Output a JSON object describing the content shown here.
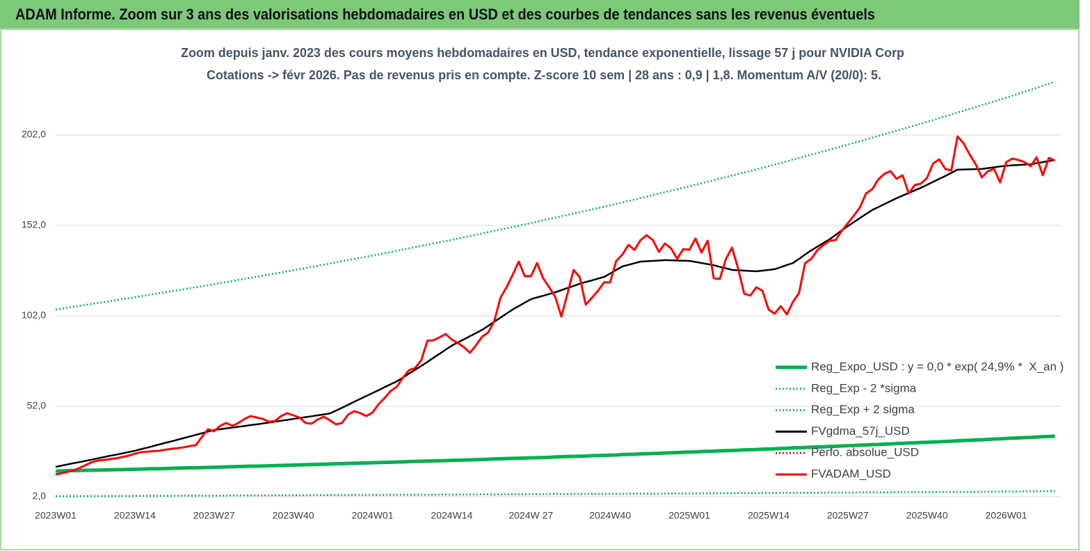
{
  "header": {
    "title": "ADAM Informe. Zoom sur 3 ans des valorisations hebdomadaires en USD et des courbes de tendances sans les revenus éventuels"
  },
  "chart_data": {
    "type": "line",
    "title": "Zoom depuis janv. 2023 des cours moyens hebdomadaires en USD, tendance exponentielle, lissage 57 j pour NVIDIA Corp",
    "subtitle": "Cotations -> févr 2026. Pas de revenus pris en compte. Z-score 10 sem | 28 ans : 0,9 | 1,8. Momentum A/V (20/0): 5.",
    "categories": [
      "2023W01",
      null,
      null,
      null,
      null,
      null,
      null,
      null,
      null,
      null,
      null,
      null,
      null,
      "2023W14",
      null,
      null,
      null,
      null,
      null,
      null,
      null,
      null,
      null,
      null,
      null,
      null,
      "2023W27",
      null,
      null,
      null,
      null,
      null,
      null,
      null,
      null,
      null,
      null,
      null,
      null,
      "2023W40",
      null,
      null,
      null,
      null,
      null,
      null,
      null,
      null,
      null,
      null,
      null,
      null,
      "2024W01",
      null,
      null,
      null,
      null,
      null,
      null,
      null,
      null,
      null,
      null,
      null,
      null,
      "2024W14",
      null,
      null,
      null,
      null,
      null,
      null,
      null,
      null,
      null,
      null,
      null,
      null,
      "2024W 27",
      null,
      null,
      null,
      null,
      null,
      null,
      null,
      null,
      null,
      null,
      null,
      null,
      "2024W40",
      null,
      null,
      null,
      null,
      null,
      null,
      null,
      null,
      null,
      null,
      null,
      null,
      "2025W01",
      null,
      null,
      null,
      null,
      null,
      null,
      null,
      null,
      null,
      null,
      null,
      null,
      "2025W14",
      null,
      null,
      null,
      null,
      null,
      null,
      null,
      null,
      null,
      null,
      null,
      null,
      "2025W27",
      null,
      null,
      null,
      null,
      null,
      null,
      null,
      null,
      null,
      null,
      null,
      null,
      "2025W40",
      null,
      null,
      null,
      null,
      null,
      null,
      null,
      null,
      null,
      null,
      null,
      null,
      "2026W01",
      null,
      null,
      null,
      null,
      null,
      null,
      null,
      null
    ],
    "ylim": [
      2,
      232
    ],
    "yticks": [
      {
        "value": 2,
        "label": "2,0"
      },
      {
        "value": 52,
        "label": "52,0"
      },
      {
        "value": 102,
        "label": "102,0"
      },
      {
        "value": 152,
        "label": "152,0"
      },
      {
        "value": 202,
        "label": "202,0"
      }
    ],
    "grid": true,
    "legend": "lower right",
    "series": [
      {
        "name": "Reg_Expo_USD : y = 0,0 * exp( 24,9% *  X_an )",
        "color": "#00b050",
        "line_style": "thick",
        "values": [
          16.2,
          16.3,
          16.4,
          16.4,
          16.5,
          16.6,
          16.7,
          16.7,
          16.8,
          16.9,
          17.0,
          17.0,
          17.1,
          17.2,
          17.3,
          17.4,
          17.5,
          17.5,
          17.6,
          17.7,
          17.8,
          17.9,
          18.0,
          18.0,
          18.1,
          18.2,
          18.3,
          18.4,
          18.5,
          18.6,
          18.7,
          18.8,
          18.9,
          18.9,
          19.0,
          19.1,
          19.2,
          19.3,
          19.4,
          19.5,
          19.6,
          19.7,
          19.8,
          19.9,
          20.0,
          20.1,
          20.2,
          20.3,
          20.4,
          20.5,
          20.6,
          20.7,
          20.8,
          20.9,
          21.0,
          21.1,
          21.2,
          21.3,
          21.4,
          21.5,
          21.6,
          21.7,
          21.8,
          21.9,
          22.0,
          22.1,
          22.2,
          22.3,
          22.4,
          22.5,
          22.6,
          22.7,
          22.9,
          23.0,
          23.1,
          23.2,
          23.3,
          23.4,
          23.5,
          23.6,
          23.7,
          23.8,
          24.0,
          24.1,
          24.2,
          24.3,
          24.4,
          24.5,
          24.7,
          24.8,
          24.9,
          25.0,
          25.1,
          25.3,
          25.4,
          25.5,
          25.7,
          25.8,
          25.9,
          26.0,
          26.2,
          26.3,
          26.4,
          26.6,
          26.7,
          26.8,
          27.0,
          27.1,
          27.2,
          27.4,
          27.5,
          27.6,
          27.7,
          27.9,
          28.0,
          28.1,
          28.3,
          28.4,
          28.5,
          28.7,
          28.8,
          29.0,
          29.1,
          29.2,
          29.4,
          29.5,
          29.6,
          29.8,
          29.9,
          30.1,
          30.2,
          30.3,
          30.5,
          30.6,
          30.8,
          30.9,
          31.1,
          31.2,
          31.4,
          31.5,
          31.7,
          31.8,
          32.0,
          32.1,
          32.3,
          32.4,
          32.6,
          32.7,
          32.9,
          33.1,
          33.2,
          33.4,
          33.5,
          33.7,
          33.9,
          34.0,
          34.2,
          34.4,
          34.5,
          34.7,
          34.8,
          35.0,
          35.2,
          35.3,
          35.5
        ]
      },
      {
        "name": "Reg_Exp - 2 *sigma",
        "color": "#00b050",
        "line_style": "dotted",
        "values": [
          2.3,
          2.3,
          2.3,
          2.3,
          2.3,
          2.3,
          2.4,
          2.4,
          2.4,
          2.4,
          2.4,
          2.4,
          2.4,
          2.5,
          2.5,
          2.5,
          2.5,
          2.5,
          2.5,
          2.5,
          2.6,
          2.6,
          2.6,
          2.6,
          2.6,
          2.6,
          2.6,
          2.6,
          2.6,
          2.7,
          2.7,
          2.7,
          2.7,
          2.7,
          2.7,
          2.7,
          2.8,
          2.8,
          2.8,
          2.8,
          2.8,
          2.8,
          2.9,
          2.9,
          2.9,
          2.9,
          2.9,
          2.9,
          2.9,
          3.0,
          3.0,
          3.0,
          3.0,
          3.0,
          3.0,
          3.1,
          3.1,
          3.1,
          3.1,
          3.1,
          3.1,
          3.1,
          3.2,
          3.2,
          3.2,
          3.2,
          3.2,
          3.2,
          3.3,
          3.3,
          3.3,
          3.3,
          3.3,
          3.3,
          3.3,
          3.4,
          3.4,
          3.4,
          3.4,
          3.4,
          3.4,
          3.5,
          3.5,
          3.5,
          3.5,
          3.5,
          3.5,
          3.5,
          3.6,
          3.6,
          3.6,
          3.6,
          3.6,
          3.6,
          3.7,
          3.7,
          3.7,
          3.7,
          3.7,
          3.7,
          3.7,
          3.8,
          3.8,
          3.8,
          3.8,
          3.8,
          3.9,
          3.9,
          3.9,
          3.9,
          3.9,
          4.0,
          4.0,
          4.0,
          4.0,
          4.0,
          4.1,
          4.1,
          4.1,
          4.1,
          4.2,
          4.2,
          4.2,
          4.2,
          4.2,
          4.2,
          4.2,
          4.3,
          4.3,
          4.3,
          4.3,
          4.3,
          4.4,
          4.4,
          4.4,
          4.4,
          4.4,
          4.5,
          4.5,
          4.5,
          4.5,
          4.5,
          4.6,
          4.6,
          4.6,
          4.7,
          4.7,
          4.7,
          4.7,
          4.7,
          4.8,
          4.8,
          4.8,
          4.8,
          4.8,
          4.9,
          4.9,
          4.9,
          4.9,
          5.0,
          5.0,
          5.0,
          5.0,
          5.1,
          5.1
        ]
      },
      {
        "name": "Reg_Exp + 2 sigma",
        "color": "#00b050",
        "line_style": "dotted",
        "values": [
          105.5,
          106.0,
          106.5,
          107.1,
          107.6,
          108.1,
          108.6,
          109.2,
          109.7,
          110.2,
          110.7,
          111.3,
          111.8,
          112.3,
          112.9,
          113.4,
          114.0,
          114.5,
          115.1,
          115.6,
          116.2,
          116.7,
          117.3,
          117.8,
          118.4,
          118.9,
          119.5,
          120.1,
          120.7,
          121.3,
          121.9,
          122.5,
          123.1,
          123.6,
          124.2,
          124.8,
          125.4,
          126.0,
          126.6,
          127.2,
          127.8,
          128.4,
          129.1,
          129.7,
          130.3,
          130.9,
          131.6,
          132.2,
          132.8,
          133.4,
          134.1,
          134.7,
          135.3,
          136.0,
          136.6,
          137.3,
          138.0,
          138.6,
          139.3,
          140.0,
          140.7,
          141.3,
          142.0,
          142.7,
          143.3,
          144.0,
          144.7,
          145.4,
          146.1,
          146.9,
          147.6,
          148.3,
          149.0,
          149.7,
          150.4,
          151.2,
          151.9,
          152.6,
          153.3,
          154.1,
          154.8,
          155.6,
          156.3,
          157.1,
          157.8,
          158.6,
          159.3,
          160.1,
          160.8,
          161.6,
          162.3,
          163.1,
          163.9,
          164.7,
          165.5,
          166.3,
          167.1,
          167.9,
          168.8,
          169.6,
          170.4,
          171.2,
          172.0,
          172.8,
          173.6,
          174.5,
          175.3,
          176.2,
          177.0,
          177.9,
          178.7,
          179.6,
          180.4,
          181.3,
          182.1,
          183.0,
          183.8,
          184.7,
          185.6,
          186.5,
          187.4,
          188.4,
          189.3,
          190.2,
          191.1,
          192.0,
          192.9,
          193.9,
          194.8,
          195.7,
          196.6,
          197.6,
          198.5,
          199.5,
          200.5,
          201.4,
          202.4,
          203.4,
          204.4,
          205.3,
          206.3,
          207.3,
          208.2,
          209.2,
          210.2,
          211.3,
          212.3,
          213.3,
          214.4,
          215.4,
          216.4,
          217.4,
          218.5,
          219.5,
          220.5,
          221.6,
          222.6,
          223.7,
          224.8,
          225.9,
          227.0,
          228.1,
          229.2,
          230.3,
          231.4
        ]
      },
      {
        "name": "FVgdma_57j_USD",
        "color": "#000000",
        "line_style": "solid",
        "values": [
          18.5,
          19.2,
          19.9,
          20.6,
          21.2,
          21.9,
          22.6,
          23.3,
          24.0,
          24.7,
          25.3,
          26.0,
          26.7,
          27.4,
          28.3,
          29.1,
          30.0,
          30.9,
          31.8,
          32.6,
          33.5,
          34.4,
          35.3,
          36.2,
          37.1,
          38.0,
          38.9,
          39.3,
          39.8,
          40.2,
          40.7,
          41.1,
          41.6,
          42.0,
          42.5,
          43.0,
          43.5,
          44.0,
          44.5,
          45.0,
          45.5,
          46.0,
          46.5,
          47.0,
          47.5,
          48.0,
          49.6,
          51.2,
          52.8,
          54.5,
          56.1,
          57.7,
          59.3,
          60.9,
          62.6,
          64.2,
          65.8,
          67.9,
          70.1,
          72.2,
          74.3,
          76.5,
          78.8,
          81.0,
          83.3,
          85.5,
          87.3,
          89.0,
          90.8,
          92.5,
          94.3,
          96.5,
          98.8,
          101.0,
          103.3,
          105.5,
          107.4,
          109.3,
          111.2,
          112.2,
          113.1,
          114.1,
          115.0,
          116.2,
          117.4,
          118.5,
          119.7,
          120.7,
          121.6,
          122.6,
          123.5,
          125.4,
          127.4,
          129.3,
          130.2,
          131.1,
          132.0,
          132.2,
          132.4,
          132.6,
          132.8,
          132.7,
          132.6,
          132.5,
          132.4,
          131.8,
          131.2,
          130.6,
          130.0,
          129.1,
          128.3,
          127.4,
          127.2,
          127.0,
          126.8,
          126.6,
          127.0,
          127.4,
          127.8,
          128.9,
          130.1,
          131.2,
          133.5,
          135.9,
          138.2,
          140.2,
          142.3,
          144.3,
          146.7,
          149.2,
          151.6,
          153.8,
          156.1,
          158.3,
          160.5,
          162.1,
          163.8,
          165.4,
          167.0,
          168.5,
          169.9,
          171.4,
          172.8,
          174.4,
          176.1,
          177.7,
          179.3,
          181.1,
          182.8,
          182.9,
          183.0,
          183.1,
          183.2,
          183.7,
          184.1,
          184.6,
          185.0,
          185.2,
          185.4,
          185.6,
          185.8,
          186.4,
          187.0,
          187.6,
          188.2
        ]
      },
      {
        "name": "Perfo. absolue_USD",
        "color": "#c00000",
        "line_style": "dotted",
        "values": [
          null,
          null,
          null,
          null,
          null,
          null,
          null,
          null,
          null,
          null,
          null,
          null,
          null,
          null,
          null,
          null,
          null,
          null,
          null,
          null,
          null,
          null,
          null,
          null,
          null,
          null,
          null,
          null,
          null,
          null,
          null,
          null,
          null,
          null,
          null,
          null,
          null,
          null,
          null,
          null,
          null,
          null,
          null,
          null,
          null,
          null,
          null,
          null,
          null,
          null,
          null,
          null,
          null,
          null,
          null,
          null,
          null,
          null,
          null,
          null,
          null,
          null,
          null,
          null,
          null,
          null,
          null,
          null,
          null,
          null,
          null,
          null,
          null,
          null,
          null,
          null,
          null,
          null,
          null,
          null,
          null,
          null,
          null,
          null,
          null,
          null,
          null,
          null,
          null,
          null,
          null,
          null,
          null,
          null,
          null,
          null,
          null,
          null,
          null,
          null,
          null,
          null,
          null,
          null,
          null,
          null,
          null,
          null,
          null,
          null,
          null,
          null,
          null,
          null,
          null,
          null,
          null,
          null,
          null,
          null,
          null,
          null,
          null,
          null,
          null,
          null,
          null,
          null,
          null,
          null,
          null,
          null,
          null,
          null,
          null,
          null,
          null,
          null,
          null,
          null,
          null,
          null,
          null,
          null,
          null,
          null,
          null,
          null,
          null,
          null,
          null,
          null,
          null,
          null,
          null,
          null,
          null,
          null,
          null,
          null,
          null,
          null,
          null,
          null,
          null
        ]
      },
      {
        "name": "FVADAM_USD",
        "color": "#ff0000",
        "line_style": "solid",
        "values": [
          14.3,
          15.0,
          15.8,
          16.6,
          18.0,
          19.6,
          21.2,
          22.0,
          22.4,
          22.8,
          23.3,
          24.0,
          24.7,
          25.8,
          26.6,
          26.9,
          27.2,
          27.4,
          28.0,
          28.5,
          28.9,
          29.3,
          30.0,
          30.5,
          35.0,
          39.3,
          38.2,
          41.2,
          42.8,
          41.2,
          42.8,
          45.0,
          46.6,
          45.8,
          45.0,
          43.5,
          43.9,
          46.6,
          48.2,
          47.0,
          45.8,
          42.8,
          42.4,
          44.7,
          46.2,
          44.3,
          42.0,
          42.8,
          47.4,
          49.3,
          48.2,
          46.6,
          48.5,
          53.2,
          56.6,
          60.5,
          62.8,
          67.8,
          72.0,
          73.2,
          77.4,
          88.2,
          88.5,
          90.1,
          92.0,
          88.9,
          87.0,
          84.7,
          81.6,
          85.8,
          90.5,
          92.8,
          99.3,
          112.0,
          117.8,
          124.7,
          132.0,
          123.9,
          123.9,
          131.2,
          122.8,
          117.8,
          112.4,
          101.6,
          114.3,
          127.4,
          123.5,
          108.2,
          112.0,
          115.8,
          120.5,
          120.5,
          132.4,
          135.8,
          141.2,
          138.5,
          143.9,
          146.6,
          143.9,
          137.4,
          142.0,
          139.3,
          133.5,
          138.9,
          138.5,
          144.7,
          137.0,
          143.5,
          122.8,
          122.4,
          133.5,
          139.7,
          128.2,
          114.3,
          113.2,
          117.8,
          115.8,
          105.5,
          103.2,
          107.4,
          102.8,
          109.7,
          114.7,
          131.2,
          133.5,
          138.2,
          141.2,
          143.5,
          143.9,
          148.9,
          153.2,
          157.4,
          162.0,
          169.7,
          172.0,
          177.4,
          180.5,
          182.0,
          177.8,
          179.7,
          169.7,
          174.3,
          175.1,
          178.2,
          186.2,
          188.5,
          183.2,
          182.4,
          201.2,
          197.4,
          191.2,
          185.8,
          178.5,
          182.0,
          183.2,
          175.8,
          187.0,
          188.9,
          188.2,
          187.0,
          184.7,
          189.7,
          179.7,
          189.3,
          187.8
        ]
      }
    ]
  }
}
